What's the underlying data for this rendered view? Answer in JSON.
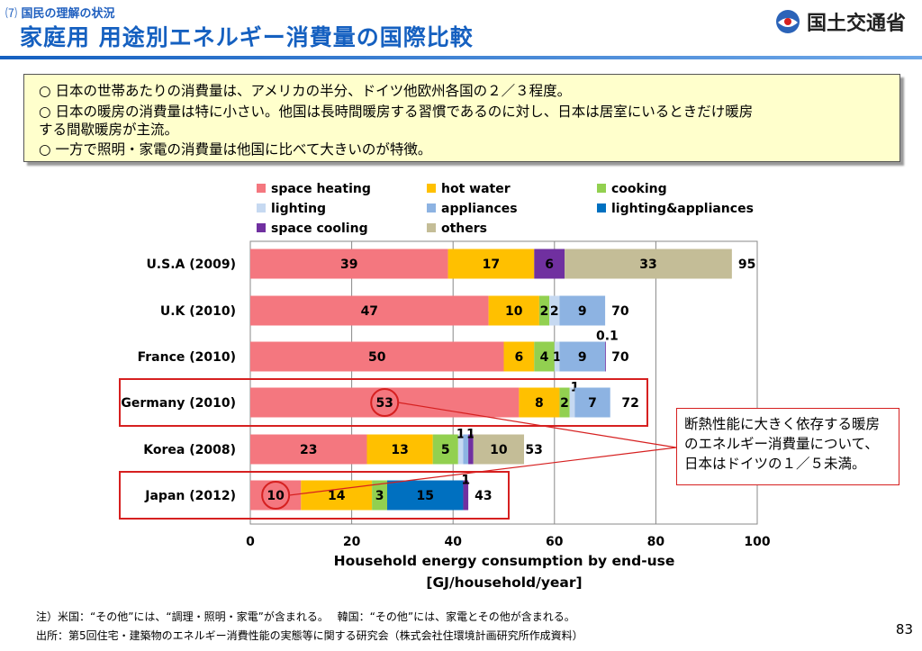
{
  "header": {
    "section_number": "⑺",
    "section_label": "国民の理解の状況",
    "title": "家庭用 用途別エネルギー消費量の国際比較",
    "logo_text": "国土交通省"
  },
  "notes": [
    "○  日本の世帯あたりの消費量は、アメリカの半分、ドイツ他欧州各国の２／３程度。",
    "○  日本の暖房の消費量は特に小さい。他国は長時間暖房する習慣であるのに対し、日本は居室にいるときだけ暖房",
    "     する間歇暖房が主流。",
    "○  一方で照明・家電の消費量は他国に比べて大きいのが特徴。"
  ],
  "chart_data": {
    "type": "bar",
    "orientation": "horizontal",
    "stacked": true,
    "categories": [
      "U.S.A (2009)",
      "U.K (2010)",
      "France (2010)",
      "Germany (2010)",
      "Korea (2008)",
      "Japan (2012)"
    ],
    "series": [
      {
        "name": "space heating",
        "color": "#f4777f",
        "values": [
          39,
          47,
          50,
          53,
          23,
          10
        ]
      },
      {
        "name": "hot water",
        "color": "#ffc000",
        "values": [
          17,
          10,
          6,
          8,
          13,
          14
        ]
      },
      {
        "name": "cooking",
        "color": "#92d050",
        "values": [
          0,
          2,
          4,
          2,
          5,
          3
        ]
      },
      {
        "name": "lighting",
        "color": "#c6d9f1",
        "values": [
          0,
          2,
          1,
          1,
          1,
          0
        ]
      },
      {
        "name": "appliances",
        "color": "#8db3e2",
        "values": [
          0,
          9,
          9,
          7,
          1,
          0
        ]
      },
      {
        "name": "lighting&appliances",
        "color": "#0070c0",
        "values": [
          0,
          0,
          0,
          0,
          0,
          15
        ]
      },
      {
        "name": "space cooling",
        "color": "#7030a0",
        "values": [
          6,
          0,
          0.1,
          0,
          1,
          1
        ]
      },
      {
        "name": "others",
        "color": "#c4bd97",
        "values": [
          33,
          0,
          0,
          0,
          10,
          0
        ]
      }
    ],
    "segment_labels": [
      [
        "39",
        "17",
        "",
        "",
        "",
        "",
        "6",
        "33"
      ],
      [
        "47",
        "10",
        "2",
        "2",
        "9",
        "",
        "",
        ""
      ],
      [
        "50",
        "6",
        "4",
        "1",
        "9",
        "",
        "0.1",
        ""
      ],
      [
        "53",
        "8",
        "2",
        "1",
        "7",
        "",
        "",
        ""
      ],
      [
        "23",
        "13",
        "5",
        "1",
        "",
        "",
        "1",
        "10"
      ],
      [
        "10",
        "14",
        "3",
        "",
        "",
        "15",
        "1",
        ""
      ]
    ],
    "totals": [
      95,
      70,
      70,
      72,
      53,
      43
    ],
    "xlim": [
      0,
      100
    ],
    "xticks": [
      0,
      20,
      40,
      60,
      80,
      100
    ],
    "xlabel": "Household energy consumption by end-use",
    "xlabel_unit": "[GJ/household/year]",
    "grid": "vertical",
    "legend_position": "top",
    "highlighted_categories": [
      "Germany (2010)",
      "Japan (2012)"
    ],
    "circled_values": [
      {
        "category": "Germany (2010)",
        "label": "53"
      },
      {
        "category": "Japan (2012)",
        "label": "10"
      }
    ]
  },
  "callout": {
    "lines": [
      "断熱性能に大きく依存する暖房",
      "のエネルギー消費量について、",
      "日本はドイツの１／５未満。"
    ],
    "color": "#d62020"
  },
  "footnotes": [
    "注）米国：“その他”には、“調理・照明・家電”が含まれる。　 韓国：“その他”には、家電とその他が含まれる。",
    "出所：第5回住宅・建築物のエネルギー消費性能の実態等に関する研究会（株式会社住環境計画研究所作成資料）"
  ],
  "page_number": "83"
}
